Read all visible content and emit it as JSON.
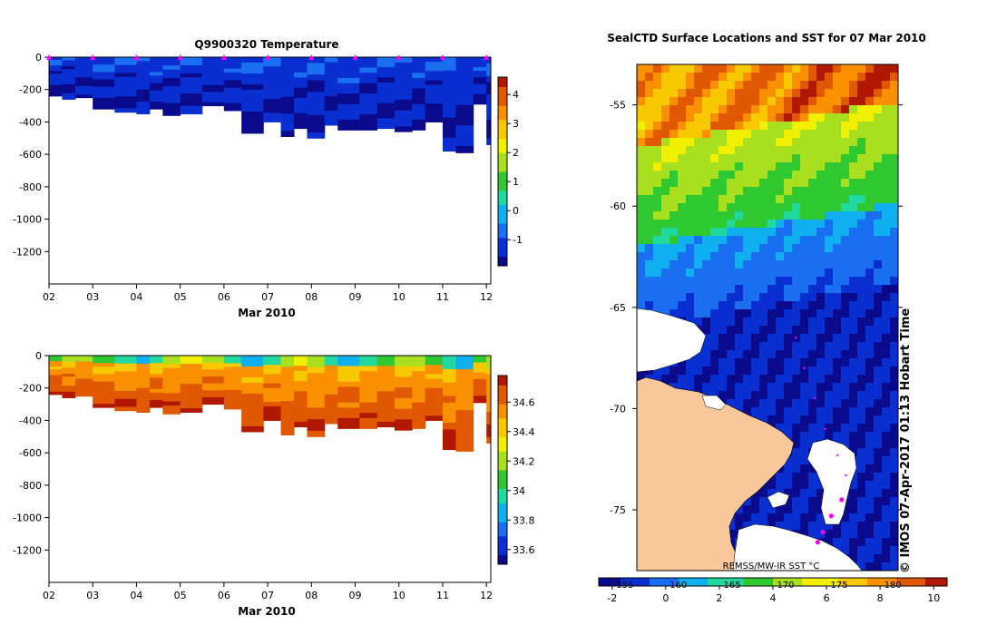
{
  "colors": {
    "land": "#f8c89a",
    "marker": "#ff00ff",
    "frame": "#000000",
    "background": "#ffffff",
    "colormap": [
      "#0a0a8c",
      "#0a2fd0",
      "#1a6ff0",
      "#10b0f0",
      "#20d8a0",
      "#30c830",
      "#a8e020",
      "#f0f000",
      "#f8c800",
      "#f89000",
      "#e05800",
      "#b01800"
    ]
  },
  "chart_data": [
    {
      "id": "temperature-section",
      "type": "heatmap",
      "title": "Q9900320  Temperature",
      "xlabel": "Mar 2010",
      "ylabel": "",
      "xlim": [
        2,
        12.1
      ],
      "ylim": [
        -1400,
        0
      ],
      "x_tick_labels": [
        "02",
        "03",
        "04",
        "05",
        "06",
        "07",
        "08",
        "09",
        "10",
        "11",
        "12"
      ],
      "x_tick_values": [
        2,
        3,
        4,
        5,
        6,
        7,
        8,
        9,
        10,
        11,
        12
      ],
      "y_ticks": [
        0,
        -200,
        -400,
        -600,
        -800,
        -1000,
        -1200
      ],
      "colorbar": {
        "min": -1.9,
        "max": 4.6,
        "ticks": [
          -1,
          0,
          1,
          2,
          3,
          4
        ],
        "tick_labels": [
          "-1",
          "0",
          "1",
          "2",
          "3",
          "4"
        ]
      },
      "profile_x": [
        2,
        2.3,
        2.6,
        3,
        3.5,
        4,
        4.3,
        4.6,
        5,
        5.5,
        6,
        6.4,
        6.9,
        7.3,
        7.6,
        7.9,
        8.3,
        8.6,
        9.1,
        9.5,
        9.9,
        10.3,
        10.6,
        11,
        11.3,
        11.7,
        12
      ],
      "max_depth": [
        240,
        260,
        250,
        320,
        340,
        350,
        320,
        360,
        350,
        300,
        330,
        470,
        400,
        490,
        440,
        500,
        420,
        450,
        450,
        440,
        460,
        450,
        400,
        580,
        590,
        290,
        540
      ],
      "surface_markers_x": [
        2,
        3,
        4,
        5,
        6,
        7,
        8,
        9,
        10,
        11,
        12
      ]
    },
    {
      "id": "salinity-section",
      "type": "heatmap",
      "title": "",
      "xlabel": "Mar 2010",
      "ylabel": "",
      "xlim": [
        2,
        12.1
      ],
      "ylim": [
        -1400,
        0
      ],
      "x_tick_labels": [
        "02",
        "03",
        "04",
        "05",
        "06",
        "07",
        "08",
        "09",
        "10",
        "11",
        "12"
      ],
      "x_tick_values": [
        2,
        3,
        4,
        5,
        6,
        7,
        8,
        9,
        10,
        11,
        12
      ],
      "y_ticks": [
        0,
        -200,
        -400,
        -600,
        -800,
        -1000,
        -1200
      ],
      "colorbar": {
        "min": 33.5,
        "max": 34.78,
        "ticks": [
          33.6,
          33.8,
          34,
          34.2,
          34.4,
          34.6
        ],
        "tick_labels": [
          "33.6",
          "33.8",
          "34",
          "34.2",
          "34.4",
          "34.6"
        ]
      },
      "profile_x": [
        2,
        2.3,
        2.6,
        3,
        3.5,
        4,
        4.3,
        4.6,
        5,
        5.5,
        6,
        6.4,
        6.9,
        7.3,
        7.6,
        7.9,
        8.3,
        8.6,
        9.1,
        9.5,
        9.9,
        10.3,
        10.6,
        11,
        11.3,
        11.7,
        12
      ],
      "max_depth": [
        240,
        260,
        250,
        320,
        340,
        350,
        320,
        360,
        350,
        300,
        330,
        470,
        400,
        490,
        440,
        500,
        420,
        450,
        450,
        440,
        460,
        450,
        400,
        580,
        590,
        290,
        540
      ]
    },
    {
      "id": "sst-map",
      "type": "heatmap",
      "title": "SealCTD Surface Locations and SST for 07 Mar 2010",
      "ylim": [
        -78,
        -53
      ],
      "y_ticks": [
        -55,
        -60,
        -65,
        -70,
        -75
      ],
      "y_tick_labels": [
        "-55",
        "-60",
        "-65",
        "-70",
        "-75"
      ],
      "map_inner_label": "REMSS/MW-IR SST °C",
      "colorbar": {
        "min": -2.5,
        "max": 10.5,
        "ticks": [
          -2,
          0,
          2,
          4,
          6,
          8,
          10
        ],
        "tick_labels": [
          "-2",
          "0",
          "2",
          "4",
          "6",
          "8",
          "10"
        ],
        "lon_tick_values": [
          -2,
          0,
          2,
          4,
          6,
          8
        ],
        "lon_tick_labels": [
          "155",
          "160",
          "165",
          "170",
          "175",
          "180"
        ]
      },
      "sst_color_bands": [
        {
          "lat_from": -53,
          "lat_to": -58,
          "description": "orange-red"
        },
        {
          "lat_from": -58,
          "lat_to": -62,
          "description": "green"
        },
        {
          "lat_from": -62,
          "lat_to": -65,
          "description": "blue"
        },
        {
          "lat_from": -65,
          "lat_to": -78,
          "description": "dark blue"
        }
      ],
      "track_points": [
        {
          "lon": 175.2,
          "lat": -66.5
        },
        {
          "lon": 176.0,
          "lat": -68.0
        },
        {
          "lon": 177.0,
          "lat": -69.5
        },
        {
          "lon": 178.0,
          "lat": -71.0
        },
        {
          "lon": 179.2,
          "lat": -72.3
        },
        {
          "lon": 180.0,
          "lat": -73.3
        },
        {
          "lon": 179.6,
          "lat": -74.5
        },
        {
          "lon": 178.6,
          "lat": -75.3
        },
        {
          "lon": 177.8,
          "lat": -76.1
        },
        {
          "lon": 177.3,
          "lat": -76.6
        }
      ],
      "attribution": "©  IMOS 07-Apr-2017 01:13 Hobart Time"
    }
  ]
}
